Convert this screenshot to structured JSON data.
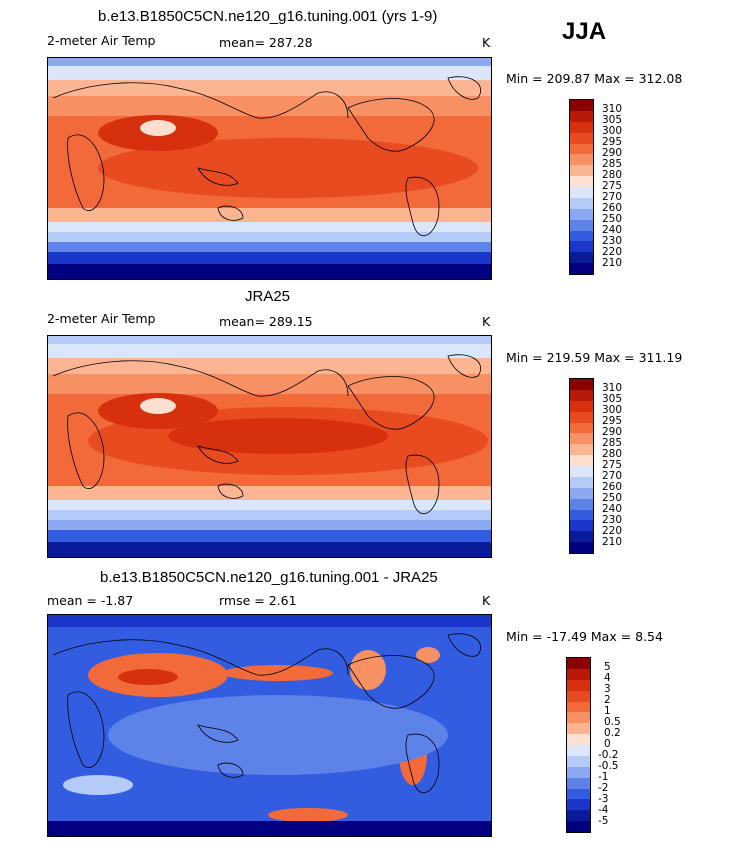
{
  "season": "JJA",
  "panels": [
    {
      "title": "b.e13.B1850C5CN.ne120_g16.tuning.001 (yrs 1-9)",
      "variable": "2-meter Air Temp",
      "stat": "mean=  287.28",
      "units": "K",
      "minmax": "Min = 209.87 Max = 312.08",
      "colorbar": {
        "labels": [
          "310",
          "305",
          "300",
          "295",
          "290",
          "285",
          "280",
          "275",
          "270",
          "260",
          "250",
          "240",
          "230",
          "220",
          "210"
        ],
        "colors": [
          "#8b0000",
          "#b81a0a",
          "#d7300f",
          "#e84b1f",
          "#f26a3a",
          "#f79063",
          "#fbb593",
          "#fde0cf",
          "#dbe6fb",
          "#b4cbf7",
          "#8aa9f0",
          "#5d82e8",
          "#325de0",
          "#1a37c9",
          "#0a1b9a",
          "#000080"
        ]
      }
    },
    {
      "title": "JRA25",
      "variable": "2-meter Air Temp",
      "stat": "mean=  289.15",
      "units": "K",
      "minmax": "Min = 219.59 Max = 311.19",
      "colorbar": {
        "labels": [
          "310",
          "305",
          "300",
          "295",
          "290",
          "285",
          "280",
          "275",
          "270",
          "260",
          "250",
          "240",
          "230",
          "220",
          "210"
        ],
        "colors": [
          "#8b0000",
          "#b81a0a",
          "#d7300f",
          "#e84b1f",
          "#f26a3a",
          "#f79063",
          "#fbb593",
          "#fde0cf",
          "#dbe6fb",
          "#b4cbf7",
          "#8aa9f0",
          "#5d82e8",
          "#325de0",
          "#1a37c9",
          "#0a1b9a",
          "#000080"
        ]
      }
    },
    {
      "title": "b.e13.B1850C5CN.ne120_g16.tuning.001 - JRA25",
      "variable": "mean =   -1.87",
      "stat": "rmse =    2.61",
      "units": "K",
      "minmax": "Min = -17.49 Max =    8.54",
      "colorbar": {
        "labels": [
          "5",
          "4",
          "3",
          "2",
          "1",
          "0.5",
          "0.2",
          "0",
          "-0.2",
          "-0.5",
          "-1",
          "-2",
          "-3",
          "-4",
          "-5"
        ],
        "colors": [
          "#8b0000",
          "#b81a0a",
          "#d7300f",
          "#e84b1f",
          "#f26a3a",
          "#f79063",
          "#fbb593",
          "#fde0cf",
          "#dbe6fb",
          "#b4cbf7",
          "#8aa9f0",
          "#5d82e8",
          "#325de0",
          "#1a37c9",
          "#0a1b9a",
          "#000080"
        ]
      }
    }
  ]
}
